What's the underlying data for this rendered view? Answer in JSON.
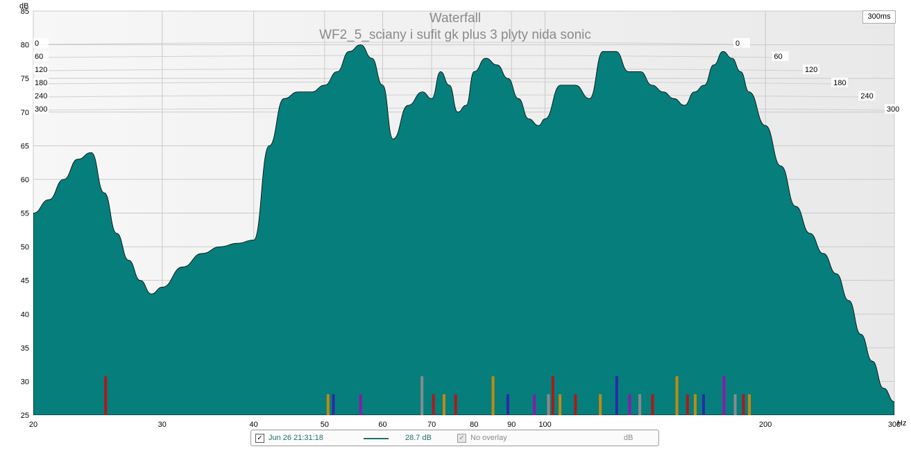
{
  "chart_data": {
    "type": "area",
    "title": "Waterfall",
    "subtitle": "WF2_5_sciany i sufit gk plus 3 plyty nida sonic",
    "xlabel": "Hz",
    "ylabel": "dB",
    "x_scale": "log",
    "xlim": [
      20,
      300
    ],
    "ylim": [
      25,
      85
    ],
    "x_ticks": [
      20,
      30,
      40,
      50,
      60,
      70,
      80,
      90,
      100,
      200,
      300
    ],
    "x_tick_labels": [
      "20",
      "30",
      "40",
      "50",
      "60",
      "70",
      "80",
      "90",
      "100",
      "200",
      "300"
    ],
    "y_ticks": [
      25,
      30,
      35,
      40,
      45,
      50,
      55,
      60,
      65,
      70,
      75,
      80,
      85
    ],
    "time_slices_ms": [
      0,
      60,
      120,
      180,
      240,
      300
    ],
    "time_range_label": "300ms",
    "grid": true,
    "fill_color": "#067e7c",
    "line_color": "#000000",
    "series": [
      {
        "x": [
          20,
          21,
          22,
          23,
          24,
          25,
          26,
          27,
          28,
          29,
          30,
          32,
          34,
          36,
          38,
          40,
          42,
          44,
          46,
          48,
          50,
          52,
          54,
          56,
          58,
          60,
          62,
          65,
          68,
          70,
          72,
          74,
          76,
          78,
          80,
          83,
          86,
          89,
          92,
          95,
          98,
          100,
          105,
          110,
          115,
          120,
          125,
          130,
          135,
          140,
          145,
          150,
          155,
          160,
          165,
          170,
          175,
          180,
          185,
          190,
          200,
          210,
          220,
          230,
          240,
          250,
          260,
          270,
          280,
          290,
          300
        ],
        "y": [
          55,
          57,
          60,
          63,
          64,
          58,
          52,
          48,
          45,
          43,
          44,
          47,
          49,
          50,
          50.5,
          51,
          65,
          72,
          73,
          73,
          74,
          76,
          79,
          80,
          78,
          74,
          66,
          71,
          73,
          72,
          76,
          74,
          70,
          71,
          76,
          78,
          77,
          75,
          72,
          69,
          68,
          69,
          74,
          74,
          72,
          79,
          79,
          76,
          76,
          74,
          73,
          72,
          71,
          73,
          74,
          77,
          79,
          78,
          76,
          73,
          68,
          62,
          56,
          52,
          49,
          46,
          42,
          37,
          33,
          29,
          27
        ]
      }
    ],
    "legend": {
      "entry_label": "Jun 26 21:31:18",
      "entry_value": "28.7 dB",
      "overlay_label": "No overlay",
      "unit": "dB"
    }
  }
}
